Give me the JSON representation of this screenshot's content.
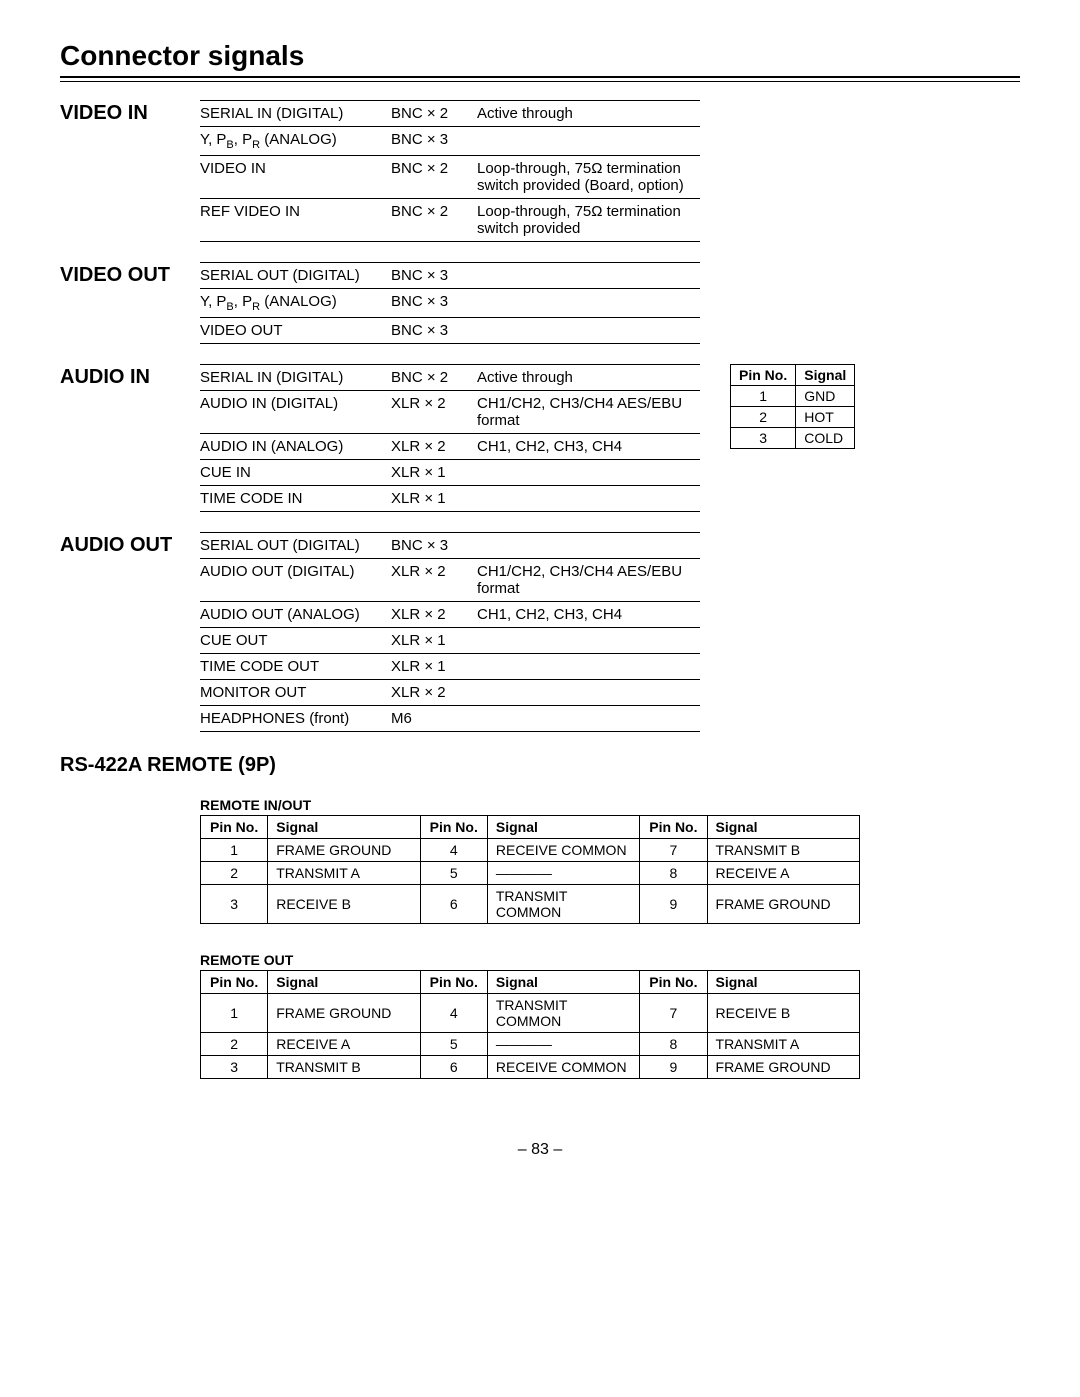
{
  "title": "Connector signals",
  "page_number": "– 83 –",
  "sections": {
    "video_in": {
      "heading": "VIDEO IN",
      "rows": [
        {
          "c1": "SERIAL IN (DIGITAL)",
          "c2": "BNC × 2",
          "c3": "Active through"
        },
        {
          "c1": "Y, P_B, P_R (ANALOG)",
          "c2": "BNC × 3",
          "c3": ""
        },
        {
          "c1": "VIDEO IN",
          "c2": "BNC × 2",
          "c3": "Loop-through, 75Ω termination switch provided  (Board, option)"
        },
        {
          "c1": "REF VIDEO IN",
          "c2": "BNC × 2",
          "c3": "Loop-through, 75Ω termination switch provided"
        }
      ]
    },
    "video_out": {
      "heading": "VIDEO OUT",
      "rows": [
        {
          "c1": "SERIAL OUT (DIGITAL)",
          "c2": "BNC × 3",
          "c3": ""
        },
        {
          "c1": "Y, P_B, P_R (ANALOG)",
          "c2": "BNC × 3",
          "c3": ""
        },
        {
          "c1": "VIDEO OUT",
          "c2": "BNC × 3",
          "c3": ""
        }
      ]
    },
    "audio_in": {
      "heading": "AUDIO IN",
      "rows": [
        {
          "c1": "SERIAL IN (DIGITAL)",
          "c2": "BNC × 2",
          "c3": "Active through"
        },
        {
          "c1": "AUDIO IN (DIGITAL)",
          "c2": "XLR × 2",
          "c3": "CH1/CH2, CH3/CH4 AES/EBU format"
        },
        {
          "c1": "AUDIO IN (ANALOG)",
          "c2": "XLR × 2",
          "c3": "CH1, CH2, CH3, CH4"
        },
        {
          "c1": "CUE IN",
          "c2": "XLR × 1",
          "c3": ""
        },
        {
          "c1": "TIME CODE IN",
          "c2": "XLR × 1",
          "c3": ""
        }
      ],
      "pin_mini": {
        "headers": [
          "Pin No.",
          "Signal"
        ],
        "rows": [
          [
            "1",
            "GND"
          ],
          [
            "2",
            "HOT"
          ],
          [
            "3",
            "COLD"
          ]
        ]
      }
    },
    "audio_out": {
      "heading": "AUDIO OUT",
      "rows": [
        {
          "c1": "SERIAL OUT (DIGITAL)",
          "c2": "BNC × 3",
          "c3": ""
        },
        {
          "c1": "AUDIO OUT (DIGITAL)",
          "c2": "XLR × 2",
          "c3": "CH1/CH2, CH3/CH4 AES/EBU format"
        },
        {
          "c1": "AUDIO OUT (ANALOG)",
          "c2": "XLR × 2",
          "c3": "CH1, CH2, CH3, CH4"
        },
        {
          "c1": "CUE OUT",
          "c2": "XLR × 1",
          "c3": ""
        },
        {
          "c1": "TIME CODE OUT",
          "c2": "XLR × 1",
          "c3": ""
        },
        {
          "c1": "MONITOR OUT",
          "c2": "XLR × 2",
          "c3": ""
        },
        {
          "c1": "HEADPHONES (front)",
          "c2": "M6",
          "c3": ""
        }
      ]
    },
    "rs422": {
      "heading": "RS-422A REMOTE (9P)",
      "tables": [
        {
          "title": "REMOTE IN/OUT",
          "headers": [
            "Pin No.",
            "Signal",
            "Pin No.",
            "Signal",
            "Pin No.",
            "Signal"
          ],
          "rows": [
            [
              "1",
              "FRAME GROUND",
              "4",
              "RECEIVE COMMON",
              "7",
              "TRANSMIT B"
            ],
            [
              "2",
              "TRANSMIT A",
              "5",
              "————",
              "8",
              "RECEIVE A"
            ],
            [
              "3",
              "RECEIVE B",
              "6",
              "TRANSMIT COMMON",
              "9",
              "FRAME GROUND"
            ]
          ]
        },
        {
          "title": "REMOTE OUT",
          "headers": [
            "Pin No.",
            "Signal",
            "Pin No.",
            "Signal",
            "Pin No.",
            "Signal"
          ],
          "rows": [
            [
              "1",
              "FRAME GROUND",
              "4",
              "TRANSMIT COMMON",
              "7",
              "RECEIVE B"
            ],
            [
              "2",
              "RECEIVE A",
              "5",
              "————",
              "8",
              "TRANSMIT A"
            ],
            [
              "3",
              "TRANSMIT B",
              "6",
              "RECEIVE COMMON",
              "9",
              "FRAME GROUND"
            ]
          ]
        }
      ]
    }
  }
}
